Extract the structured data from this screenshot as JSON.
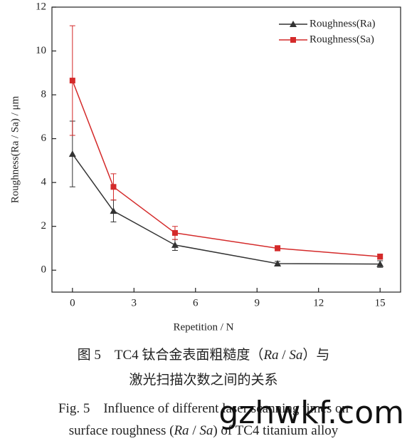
{
  "chart_data": {
    "type": "line",
    "x_label": "Repetition / N",
    "y_label": "Roughness(Ra / Sa) / μm",
    "x": [
      0,
      2,
      5,
      10,
      15
    ],
    "series": [
      {
        "name": "Roughness(Ra)",
        "color": "#333333",
        "marker": "triangle",
        "values": [
          5.3,
          2.7,
          1.15,
          0.3,
          0.28
        ],
        "errors": [
          1.5,
          0.5,
          0.25,
          0.1,
          0.15
        ]
      },
      {
        "name": "Roughness(Sa)",
        "color": "#d42a2a",
        "marker": "square",
        "values": [
          8.65,
          3.8,
          1.7,
          1.0,
          0.62
        ],
        "errors": [
          2.5,
          0.6,
          0.3,
          0.12,
          0.12
        ]
      }
    ],
    "xlim": [
      -1,
      16
    ],
    "xticks": [
      0,
      3,
      6,
      9,
      12,
      15
    ],
    "ylim": [
      -1,
      12
    ],
    "yticks": [
      0,
      2,
      4,
      6,
      8,
      10,
      12
    ],
    "legend": "upper right",
    "grid": false
  },
  "caption": {
    "lines": [
      [
        {
          "text": "图 5　TC4 钛合金表面粗糙度（",
          "italic": false
        },
        {
          "text": "Ra",
          "italic": true
        },
        {
          "text": " / ",
          "italic": false
        },
        {
          "text": "Sa",
          "italic": true
        },
        {
          "text": "）与",
          "italic": false
        }
      ],
      [
        {
          "text": "激光扫描次数之间的关系",
          "italic": false
        }
      ],
      [
        {
          "text": "Fig. 5　Influence of different laser scanning times on",
          "italic": false
        }
      ],
      [
        {
          "text": "surface roughness (",
          "italic": false
        },
        {
          "text": "Ra",
          "italic": true
        },
        {
          "text": " / ",
          "italic": false
        },
        {
          "text": "Sa",
          "italic": true
        },
        {
          "text": ") of TC4 titanium alloy",
          "italic": false
        }
      ]
    ]
  },
  "watermark": "gzhwkf.com"
}
